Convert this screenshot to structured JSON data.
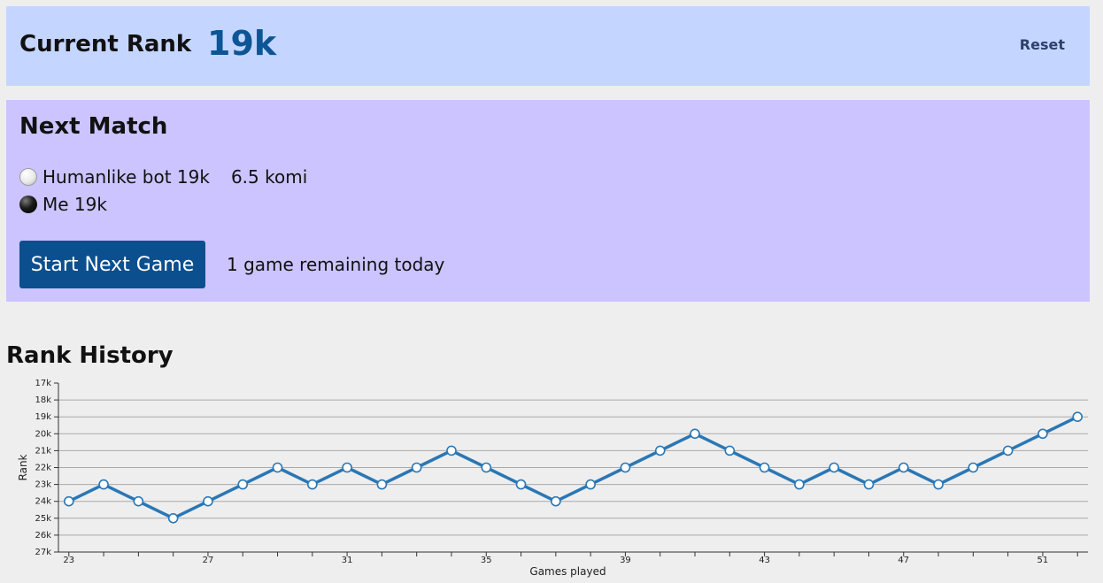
{
  "current_rank": {
    "label": "Current Rank",
    "value": "19k",
    "reset_label": "Reset"
  },
  "next_match": {
    "title": "Next Match",
    "opponent": {
      "stone": "white-stone-icon",
      "name": "Humanlike bot 19k",
      "komi": "6.5 komi"
    },
    "me": {
      "stone": "black-stone-icon",
      "name": "Me 19k"
    },
    "start_button": "Start Next Game",
    "remaining": "1 game remaining today"
  },
  "history": {
    "title": "Rank History"
  },
  "colors": {
    "rank_panel": "#c4d6ff",
    "match_panel": "#cbc4ff",
    "accent": "#0b4f8e",
    "line": "#2a77b5"
  },
  "chart_data": {
    "type": "line",
    "title": "",
    "xlabel": "Games played",
    "ylabel": "Rank",
    "y_ticks": [
      "17k",
      "18k",
      "19k",
      "20k",
      "21k",
      "22k",
      "23k",
      "24k",
      "25k",
      "26k",
      "27k"
    ],
    "y_range_kyu": [
      17,
      27
    ],
    "x_ticks": [
      23,
      27,
      31,
      35,
      39,
      43,
      47,
      51
    ],
    "x_range": [
      22.7,
      52.3
    ],
    "grid": true,
    "series": [
      {
        "x": [
          23,
          24,
          25,
          26,
          27,
          28,
          29,
          30,
          31,
          32,
          33,
          34,
          35,
          36,
          37,
          38,
          39,
          40,
          41,
          42,
          43,
          44,
          45,
          46,
          47,
          48,
          49,
          50,
          51,
          52
        ],
        "y_kyu": [
          24,
          23,
          24,
          25,
          24,
          23,
          22,
          23,
          22,
          23,
          22,
          21,
          22,
          23,
          24,
          23,
          22,
          21,
          20,
          21,
          22,
          23,
          22,
          23,
          22,
          23,
          22,
          21,
          20,
          19
        ]
      }
    ]
  }
}
